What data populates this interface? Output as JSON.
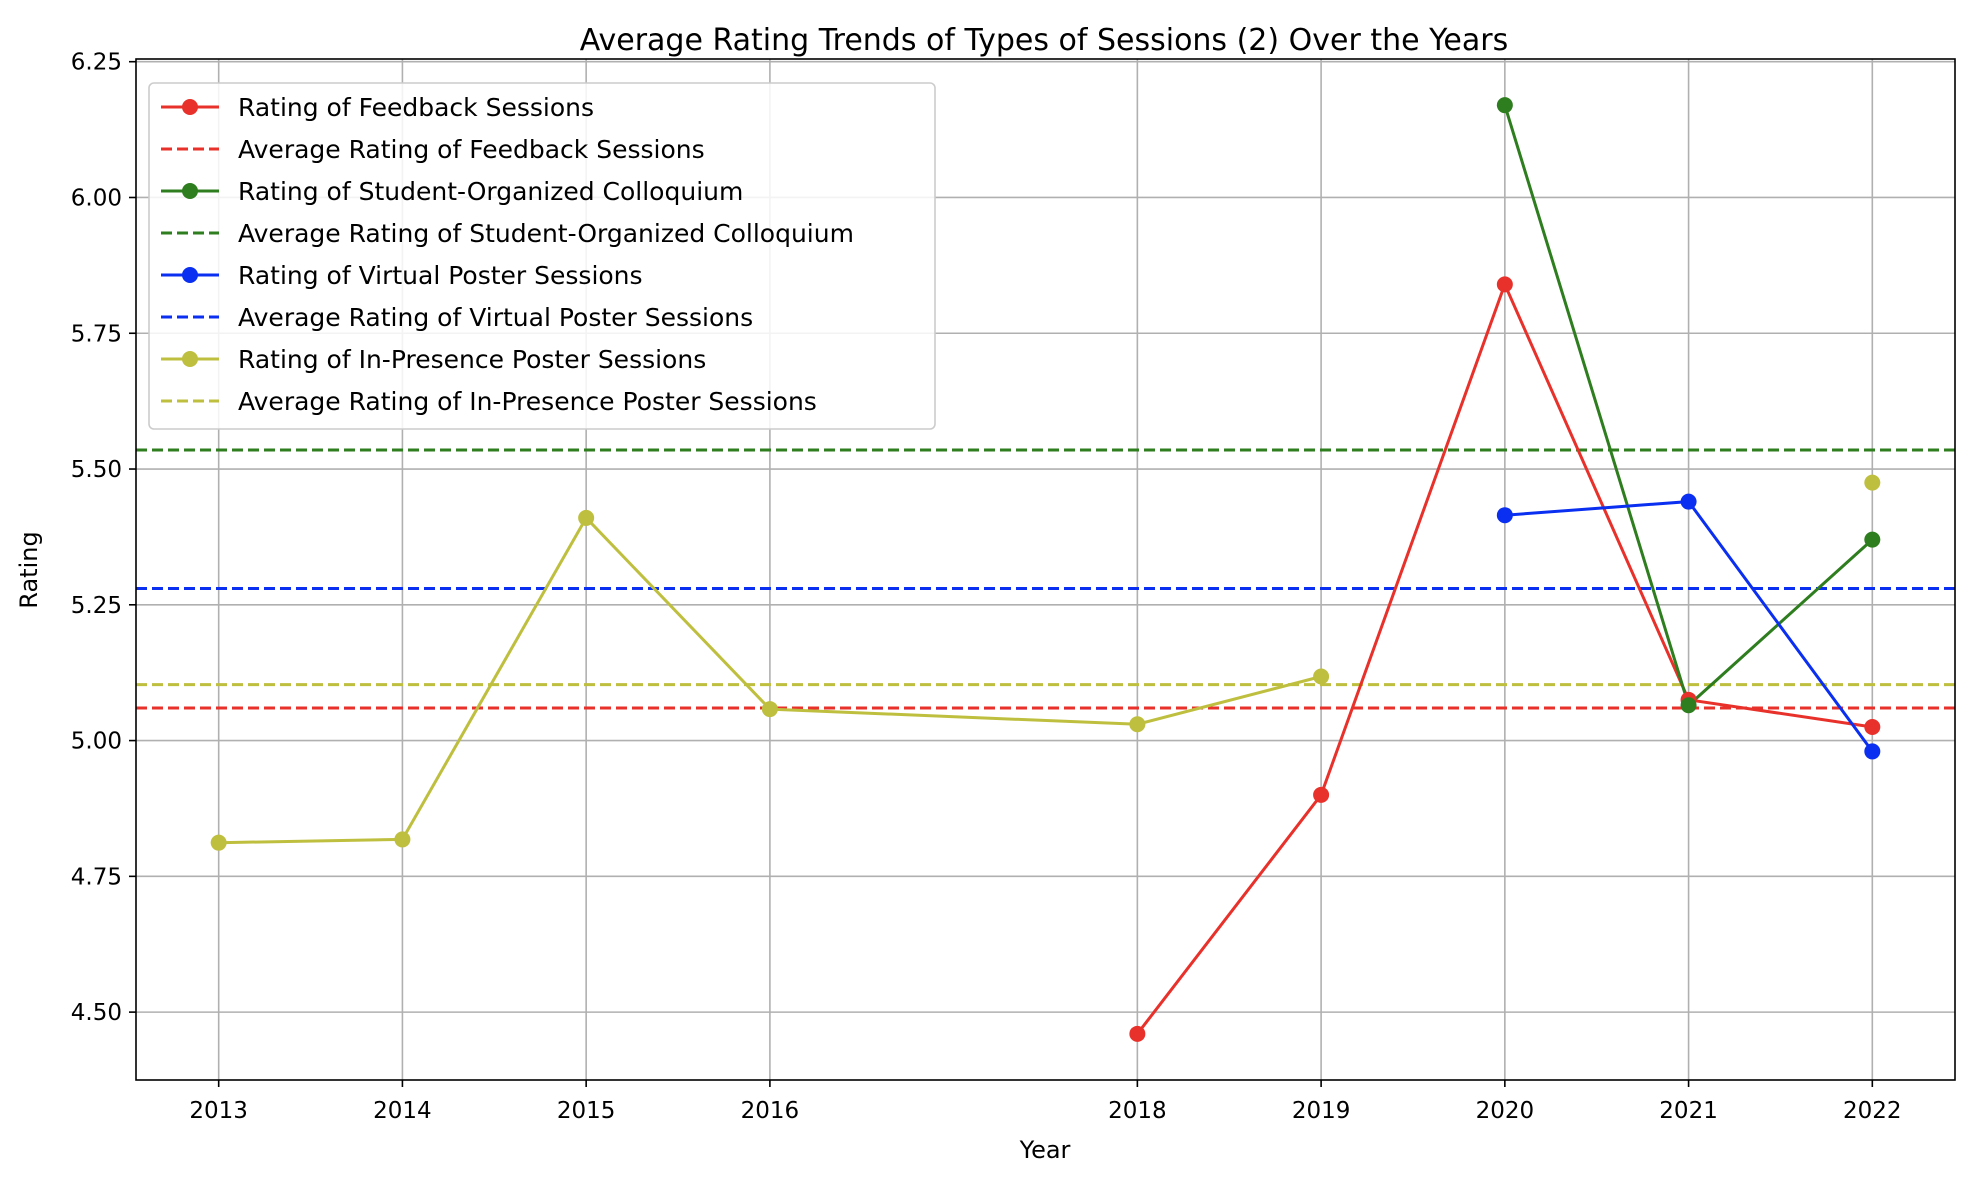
{
  "chart_data": {
    "type": "line",
    "title": "Average Rating Trends of Types of Sessions (2) Over the Years",
    "xlabel": "Year",
    "ylabel": "Rating",
    "xlim": [
      2012.55,
      2022.45
    ],
    "ylim": [
      4.375,
      6.255
    ],
    "x_ticks": [
      2013,
      2014,
      2015,
      2016,
      2018,
      2019,
      2020,
      2021,
      2022
    ],
    "y_ticks": [
      4.5,
      4.75,
      5.0,
      5.25,
      5.5,
      5.75,
      6.0,
      6.25
    ],
    "y_tick_labels": [
      "4.50",
      "4.75",
      "5.00",
      "5.25",
      "5.50",
      "5.75",
      "6.00",
      "6.25"
    ],
    "grid": true,
    "legend_position": "top-left",
    "series": [
      {
        "name": "Rating of Feedback Sessions",
        "color": "#e8312a",
        "style": "solid-marker",
        "points": [
          [
            2018,
            4.46
          ],
          [
            2019,
            4.9
          ],
          [
            2020,
            5.84
          ],
          [
            2021,
            5.075
          ],
          [
            2022,
            5.025
          ]
        ]
      },
      {
        "name": "Average Rating of Feedback Sessions",
        "color": "#e8312a",
        "style": "dashed",
        "value": 5.06
      },
      {
        "name": "Rating of Student-Organized Colloquium",
        "color": "#2e7d1e",
        "style": "solid-marker",
        "points": [
          [
            2020,
            6.17
          ],
          [
            2021,
            5.065
          ],
          [
            2022,
            5.37
          ]
        ]
      },
      {
        "name": "Average Rating of Student-Organized Colloquium",
        "color": "#2e7d1e",
        "style": "dashed",
        "value": 5.535
      },
      {
        "name": "Rating of Virtual Poster Sessions",
        "color": "#0a2ff0",
        "style": "solid-marker",
        "points": [
          [
            2020,
            5.415
          ],
          [
            2021,
            5.44
          ],
          [
            2022,
            4.98
          ]
        ]
      },
      {
        "name": "Average Rating of Virtual Poster Sessions",
        "color": "#0a2ff0",
        "style": "dashed",
        "value": 5.28
      },
      {
        "name": "Rating of In-Presence Poster Sessions",
        "color": "#bfbf3f",
        "style": "solid-marker",
        "points": [
          [
            2013,
            4.812
          ],
          [
            2014,
            4.818
          ],
          [
            2015,
            5.41
          ],
          [
            2016,
            5.058
          ],
          [
            2018,
            5.03
          ],
          [
            2019,
            5.118
          ]
        ],
        "extra_points": [
          [
            2022,
            5.475
          ]
        ]
      },
      {
        "name": "Average Rating of In-Presence Poster Sessions",
        "color": "#bfbf3f",
        "style": "dashed",
        "value": 5.103
      }
    ]
  }
}
